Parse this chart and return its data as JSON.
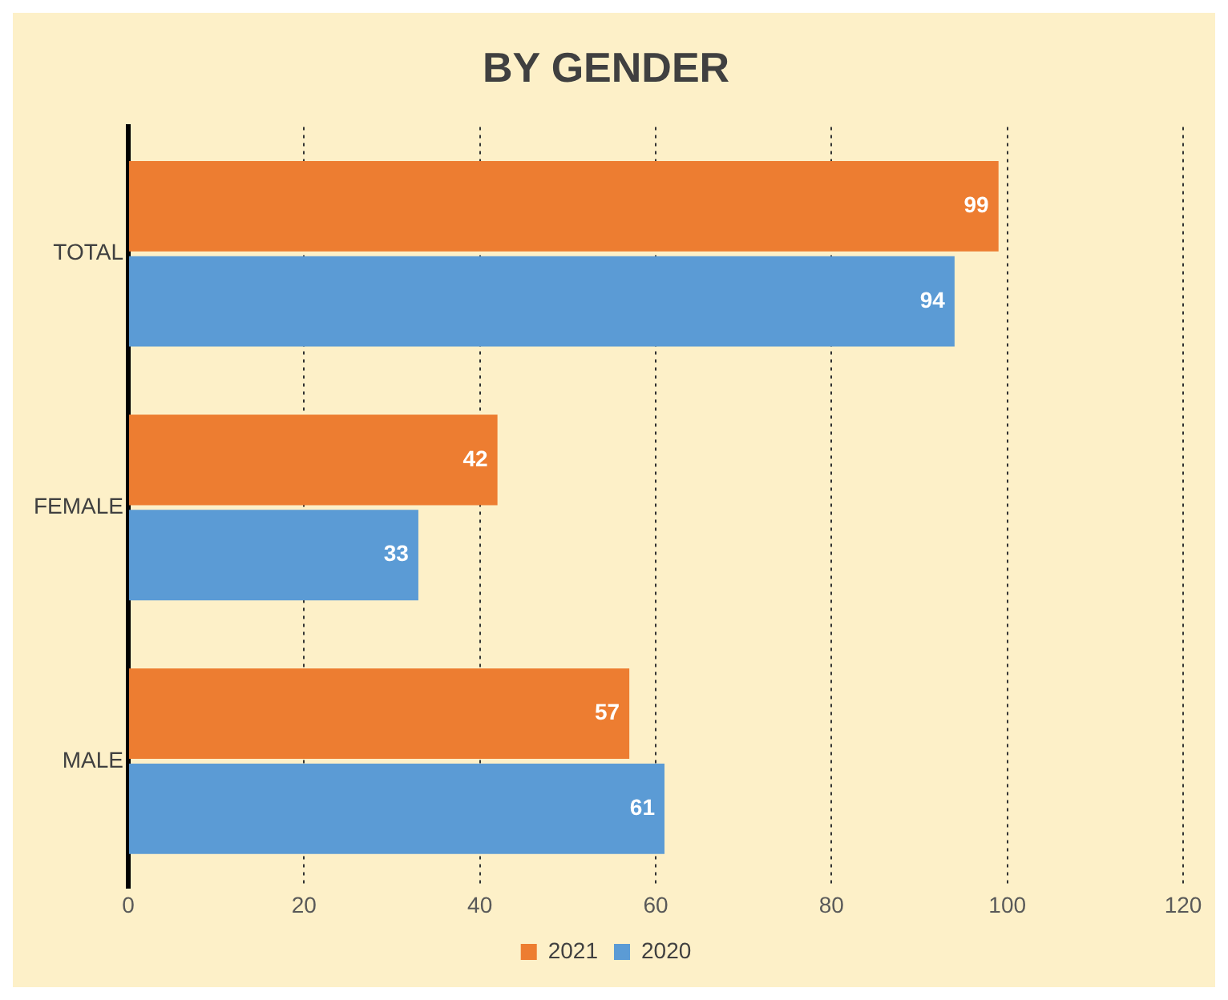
{
  "chart_data": {
    "type": "bar",
    "orientation": "horizontal",
    "title": "BY GENDER",
    "categories": [
      "TOTAL",
      "FEMALE",
      "MALE"
    ],
    "series": [
      {
        "name": "2021",
        "color": "#ed7d31",
        "values": [
          99,
          42,
          57
        ]
      },
      {
        "name": "2020",
        "color": "#5b9bd5",
        "values": [
          94,
          33,
          61
        ]
      }
    ],
    "xlim": [
      0,
      120
    ],
    "xticks": [
      0,
      20,
      40,
      60,
      80,
      100,
      120
    ],
    "grid": "x",
    "legend": "bottom",
    "data_labels": true
  }
}
